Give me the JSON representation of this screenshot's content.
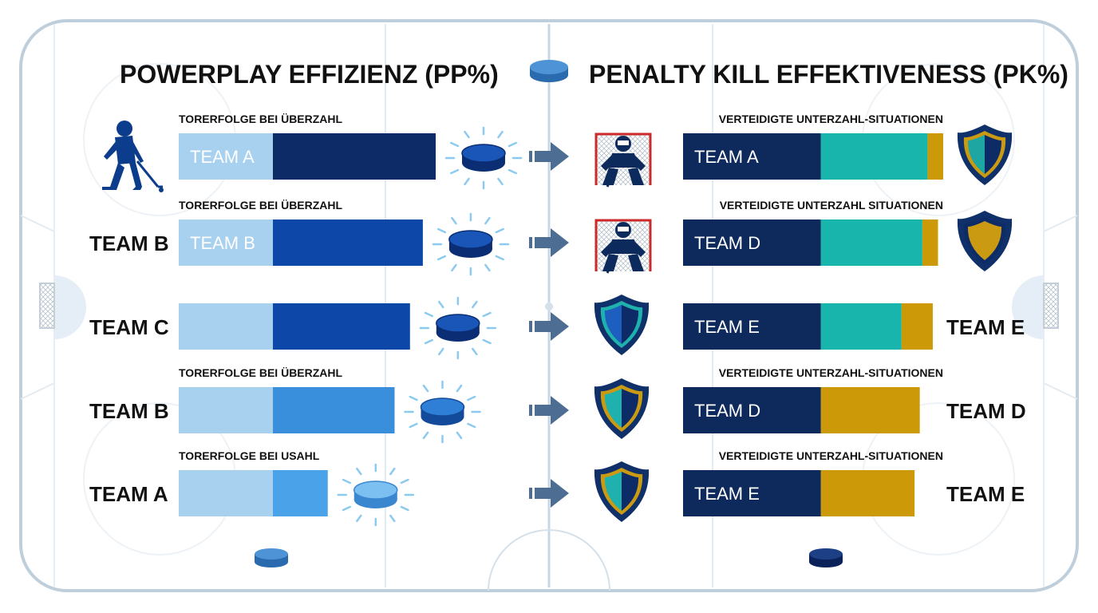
{
  "colors": {
    "pp_light": "#a8d1f0",
    "pp_dark_1": "#0d2b66",
    "pp_dark_2": "#0d48a8",
    "pp_dark_3": "#3a8fdc",
    "pp_dark_4": "#4aa3e8",
    "pk_navy": "#0e2a5c",
    "pk_teal": "#18b5ad",
    "pk_gold": "#cc9a08",
    "arrow": "#4d6e92",
    "rink_line": "#c8d7e4"
  },
  "icons": {
    "header_puck": "puck-icon",
    "left_row_1": "hockey-player-icon",
    "pp_puck": "glowing-puck-icon",
    "transfer": "arrow-right-icon",
    "goalie": "goalie-icon",
    "shield": "shield-icon",
    "footer_puck": "puck-icon"
  },
  "chart_data": [
    {
      "type": "bar",
      "title": "POWERPLAY EFFIZIENZ (PP%)",
      "stacked": true,
      "orientation": "horizontal",
      "rows": [
        {
          "left_label": "",
          "subtitle": "TORERFOLGE BEI ÜBERZAHL",
          "bar_label": "TEAM A",
          "segments": [
            0.38,
            0.62
          ],
          "total": 1.0,
          "dark_color": "pp_dark_1"
        },
        {
          "left_label": "TEAM B",
          "subtitle": "TORERFOLGE BEI ÜBERZAHL",
          "bar_label": "TEAM B",
          "segments": [
            0.37,
            0.58
          ],
          "total": 0.95,
          "dark_color": "pp_dark_2"
        },
        {
          "left_label": "TEAM C",
          "subtitle": "",
          "bar_label": "",
          "segments": [
            0.36,
            0.54
          ],
          "total": 0.9,
          "dark_color": "pp_dark_2"
        },
        {
          "left_label": "TEAM B",
          "subtitle": "TORERFOLGE BEI ÜBERZAHL",
          "bar_label": "",
          "segments": [
            0.37,
            0.47
          ],
          "total": 0.84,
          "dark_color": "pp_dark_3"
        },
        {
          "left_label": "TEAM A",
          "subtitle": "TORERFOLGE BEI USAHL",
          "bar_label": "",
          "segments": [
            0.37,
            0.21
          ],
          "total": 0.58,
          "dark_color": "pp_dark_4"
        }
      ]
    },
    {
      "type": "bar",
      "title": "PENALTY KILL EFFEKTIVENESS (PK%)",
      "stacked": true,
      "orientation": "horizontal",
      "rows": [
        {
          "right_label": "",
          "subtitle": "VERTEIDIGTE UNTERZAHL-SITUATIONEN",
          "bar_label": "TEAM A",
          "segments": {
            "navy": 0.53,
            "teal": 0.41,
            "gold": 0.06
          },
          "total": 1.0,
          "left_icon": "goalie"
        },
        {
          "right_label": "",
          "subtitle": "VERTEIDIGTE UNTERZAHL SITUATIONEN",
          "bar_label": "TEAM D",
          "segments": {
            "navy": 0.53,
            "teal": 0.39,
            "gold": 0.06
          },
          "total": 0.98,
          "left_icon": "goalie"
        },
        {
          "right_label": "TEAM E",
          "subtitle": "",
          "bar_label": "TEAM E",
          "segments": {
            "navy": 0.53,
            "teal": 0.31,
            "gold": 0.12
          },
          "total": 0.96,
          "left_icon": "shield"
        },
        {
          "right_label": "TEAM D",
          "subtitle": "VERTEIDIGTE UNTERZAHL-SITUATIONEN",
          "bar_label": "TEAM D",
          "segments": {
            "navy": 0.53,
            "teal": 0.0,
            "gold": 0.38
          },
          "total": 0.91,
          "left_icon": "shield"
        },
        {
          "right_label": "TEAM E",
          "subtitle": "VERTEIDIGTE UNTERZAHL-SITUATIONEN",
          "bar_label": "TEAM E",
          "segments": {
            "navy": 0.53,
            "teal": 0.0,
            "gold": 0.36
          },
          "total": 0.89,
          "left_icon": "shield"
        }
      ]
    }
  ]
}
